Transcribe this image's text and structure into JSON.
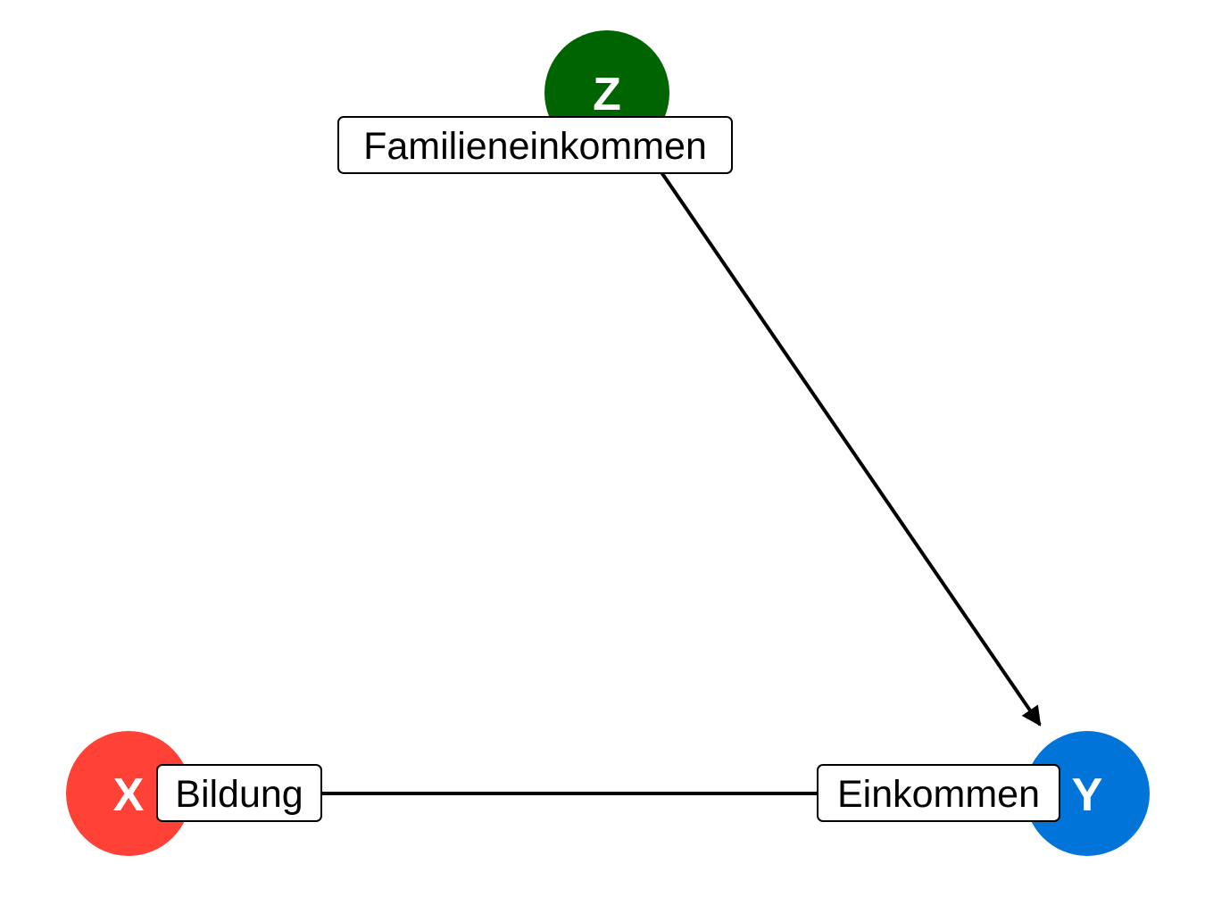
{
  "diagram": {
    "type": "directed-acyclic-graph",
    "nodes": {
      "z": {
        "letter": "Z",
        "label": "Familieneinkommen",
        "color": "#006400"
      },
      "x": {
        "letter": "X",
        "label": "Bildung",
        "color": "#ff4136"
      },
      "y": {
        "letter": "Y",
        "label": "Einkommen",
        "color": "#0074d9"
      }
    },
    "edges": [
      {
        "from": "Z",
        "to": "Y",
        "directed": true
      },
      {
        "from": "X",
        "to": "Y",
        "directed": false
      }
    ],
    "edge_color": "#000000",
    "background": "#ffffff"
  }
}
